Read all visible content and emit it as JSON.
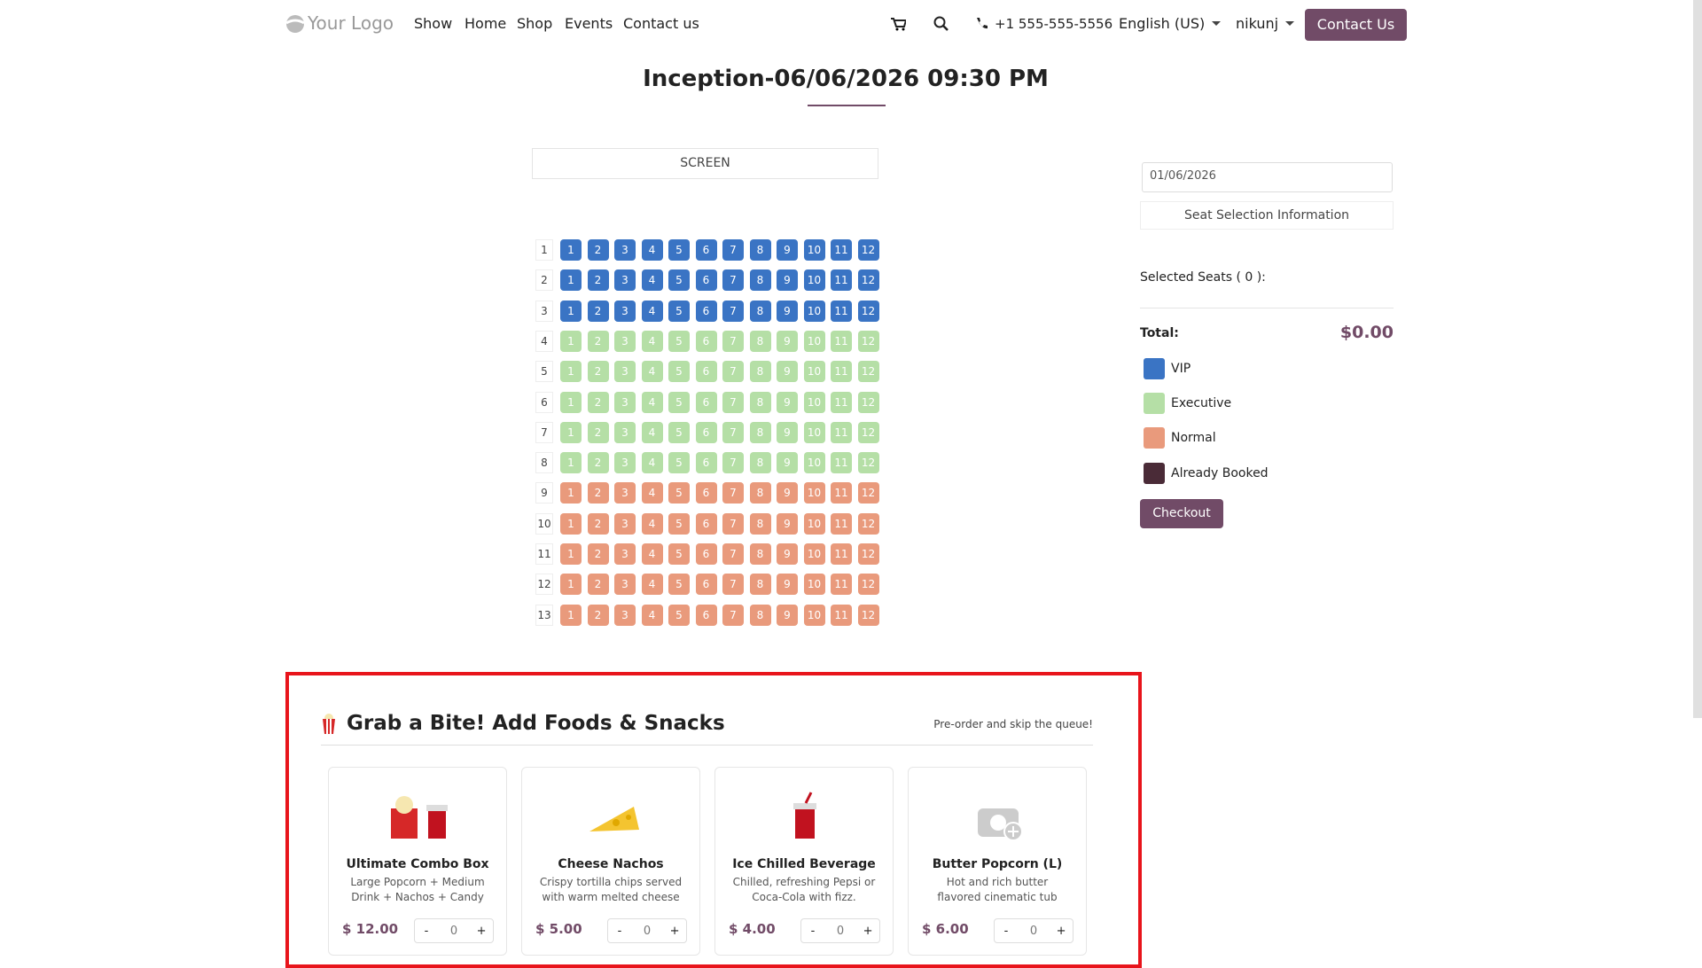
{
  "nav": {
    "logo": "Your Logo",
    "menu": [
      "Show",
      "Home",
      "Shop",
      "Events",
      "Contact us"
    ],
    "phone": "+1 555-555-5556",
    "language": "English (US)",
    "user": "nikunj",
    "cta": "Contact Us"
  },
  "title": "Inception-06/06/2026 09:30 PM",
  "seat_map": {
    "screen": "SCREEN",
    "seat_numbers": [
      "1",
      "2",
      "3",
      "4",
      "5",
      "6",
      "7",
      "8",
      "9",
      "10",
      "11",
      "12"
    ],
    "rows": [
      {
        "label": "1",
        "color": "#3a74c4"
      },
      {
        "label": "2",
        "color": "#3a74c4"
      },
      {
        "label": "3",
        "color": "#3a74c4"
      },
      {
        "label": "4",
        "color": "#b5dfa6"
      },
      {
        "label": "5",
        "color": "#b5dfa6"
      },
      {
        "label": "6",
        "color": "#b5dfa6"
      },
      {
        "label": "7",
        "color": "#b5dfa6"
      },
      {
        "label": "8",
        "color": "#b5dfa6"
      },
      {
        "label": "9",
        "color": "#e99a7c"
      },
      {
        "label": "10",
        "color": "#e99a7c"
      },
      {
        "label": "11",
        "color": "#e99a7c"
      },
      {
        "label": "12",
        "color": "#e99a7c"
      },
      {
        "label": "13",
        "color": "#e99a7c"
      }
    ]
  },
  "booking": {
    "date": "01/06/2026",
    "info_button": "Seat Selection Information",
    "selected_seats": "Selected Seats ( 0 ):",
    "total_label": "Total:",
    "total_value": "$0.00",
    "checkout": "Checkout",
    "legend": [
      {
        "label": "VIP",
        "color": "#3a74c4"
      },
      {
        "label": "Executive",
        "color": "#b5dfa6"
      },
      {
        "label": "Normal",
        "color": "#e99a7c"
      },
      {
        "label": "Already Booked",
        "color": "#4a2b37"
      }
    ]
  },
  "food": {
    "heading": "Grab a Bite! Add Foods & Snacks",
    "tagline": "Pre-order and skip the queue!",
    "decrement": "-",
    "increment": "+",
    "items": [
      {
        "name": "Ultimate Combo Box",
        "description": "Large Popcorn + Medium Drink + Nachos + Candy",
        "price": "$ 12.00",
        "quantity": "0"
      },
      {
        "name": "Cheese Nachos",
        "description": "Crispy tortilla chips served with warm melted cheese dip.",
        "price": "$ 5.00",
        "quantity": "0"
      },
      {
        "name": "Ice Chilled Beverage",
        "description": "Chilled, refreshing Pepsi or Coca-Cola with fizz.",
        "price": "$ 4.00",
        "quantity": "0"
      },
      {
        "name": "Butter Popcorn (L)",
        "description": "Hot and rich butter flavored cinematic tub popcorn.",
        "price": "$ 6.00",
        "quantity": "0"
      }
    ]
  }
}
